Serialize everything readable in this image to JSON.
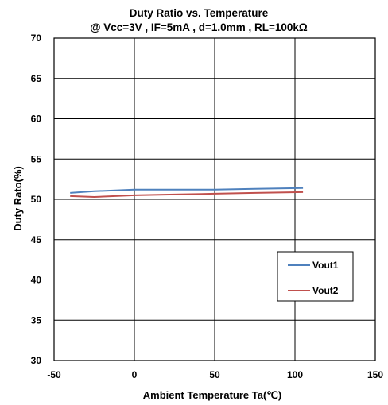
{
  "chart_data": {
    "type": "line",
    "title": "Duty Ratio vs. Temperature",
    "subtitle": "@ Vcc=3V , IF=5mA , d=1.0mm , RL=100kΩ",
    "xlabel": "Ambient Temperature Ta(℃)",
    "ylabel": "Duty Rato(%)",
    "xlim": [
      -50,
      150
    ],
    "ylim": [
      30,
      70
    ],
    "xticks": [
      "-50",
      "0",
      "50",
      "100",
      "150"
    ],
    "yticks": [
      "30",
      "35",
      "40",
      "45",
      "50",
      "55",
      "60",
      "65",
      "70"
    ],
    "grid": true,
    "legend_position": "lower-right",
    "series": [
      {
        "name": "Vout1",
        "color": "#4f81bd",
        "x": [
          -40,
          -25,
          0,
          25,
          50,
          75,
          105
        ],
        "y": [
          50.8,
          51.0,
          51.2,
          51.2,
          51.2,
          51.3,
          51.4
        ]
      },
      {
        "name": "Vout2",
        "color": "#c0504d",
        "x": [
          -40,
          -25,
          0,
          25,
          50,
          75,
          105
        ],
        "y": [
          50.4,
          50.3,
          50.5,
          50.6,
          50.7,
          50.8,
          50.9
        ]
      }
    ]
  }
}
